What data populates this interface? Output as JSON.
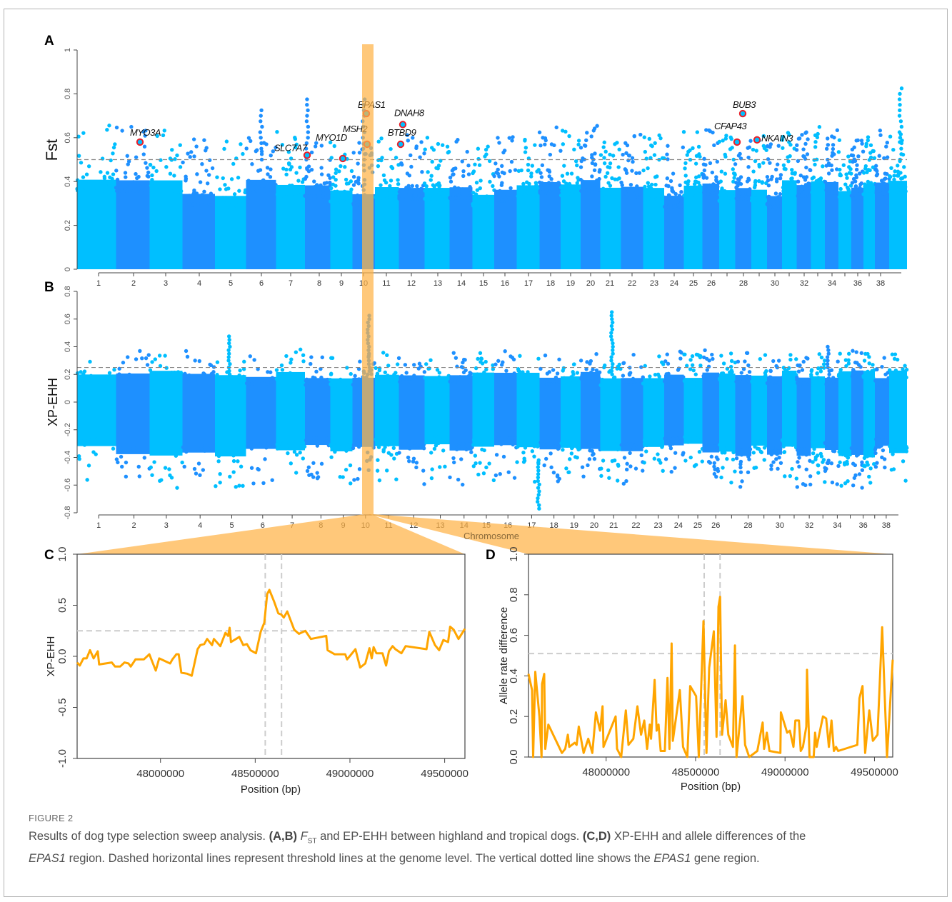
{
  "figure_label": "FIGURE 2",
  "caption": {
    "part1": "Results of dog type selection sweep analysis. ",
    "bold1": "(A,B) ",
    "fst_F": "F",
    "fst_sub": "ST",
    "part2": " and EP-EHH between highland and tropical dogs. ",
    "bold2": "(C,D)",
    "part3": " XP-EHH and allele differences of the ",
    "gene_italic": "EPAS1",
    "part4": " region. Dashed horizontal lines represent threshold lines at the genome level. The vertical dotted line shows the ",
    "gene_italic2": "EPAS1",
    "part5": " gene region."
  },
  "colors": {
    "chrom_light": "#00BFFF",
    "chrom_dark": "#1E90FF",
    "highlight": "#FFB347",
    "line": "#FFA500",
    "gene_marker": "#E8202A",
    "threshold": "#999999"
  },
  "chart_data": [
    {
      "panel": "A",
      "type": "scatter",
      "subtype": "manhattan",
      "ylabel": "Fst",
      "xlabel": "",
      "ylim": [
        0,
        1
      ],
      "yticks": [
        "0",
        "0.2",
        "0.4",
        "0.6",
        "0.8",
        "1"
      ],
      "xtick_labels": [
        "1",
        "2",
        "3",
        "4",
        "5",
        "6",
        "7",
        "8",
        "9",
        "10",
        "11",
        "12",
        "13",
        "14",
        "15",
        "16",
        "17",
        "18",
        "19",
        "20",
        "21",
        "22",
        "23",
        "24",
        "25",
        "26",
        "28",
        "30",
        "32",
        "34",
        "36",
        "38"
      ],
      "threshold": 0.5,
      "highlighted_chromosome": "10",
      "max_value": 0.85,
      "genes": [
        {
          "name": "MYO3A",
          "chromosome": 2,
          "fst": 0.58
        },
        {
          "name": "SLC7A7",
          "chromosome": 8,
          "fst": 0.52
        },
        {
          "name": "MYO1D",
          "chromosome": 9,
          "fst": 0.505
        },
        {
          "name": "MSH2",
          "chromosome": 10,
          "fst": 0.57
        },
        {
          "name": "EPAS1",
          "chromosome": 10,
          "fst": 0.71
        },
        {
          "name": "DNAH8",
          "chromosome": 12,
          "fst": 0.66
        },
        {
          "name": "BTBD9",
          "chromosome": 12,
          "fst": 0.57
        },
        {
          "name": "BUB3",
          "chromosome": 28,
          "fst": 0.71
        },
        {
          "name": "CFAP43",
          "chromosome": 28,
          "fst": 0.58
        },
        {
          "name": "NKAIN3",
          "chromosome": 29,
          "fst": 0.59
        }
      ]
    },
    {
      "panel": "B",
      "type": "scatter",
      "subtype": "manhattan",
      "ylabel": "XP-EHH",
      "xlabel": "Chromosome",
      "ylim": [
        -0.8,
        0.8
      ],
      "yticks": [
        "-0.8",
        "-0.6",
        "-0.4",
        "-0.2",
        "0",
        "0.2",
        "0.4",
        "0.6",
        "0.8"
      ],
      "xtick_labels": [
        "1",
        "2",
        "3",
        "4",
        "5",
        "6",
        "7",
        "8",
        "9",
        "10",
        "11",
        "12",
        "13",
        "14",
        "15",
        "16",
        "17",
        "18",
        "19",
        "20",
        "21",
        "22",
        "23",
        "24",
        "25",
        "26",
        "28",
        "30",
        "32",
        "34",
        "36",
        "38"
      ],
      "threshold": 0.25,
      "highlighted_chromosome": "10",
      "peaks": [
        {
          "chromosome": 10,
          "value": 0.65
        },
        {
          "chromosome": 21,
          "value": 0.67
        },
        {
          "chromosome": 5,
          "value": 0.48
        },
        {
          "chromosome": 17,
          "value": -0.77
        }
      ]
    },
    {
      "panel": "C",
      "type": "line",
      "ylabel": "XP-EHH",
      "xlabel": "Position (bp)",
      "xlim": [
        47560000,
        49607000
      ],
      "ylim": [
        -1.0,
        1.0
      ],
      "xticks": [
        "48000000",
        "48500000",
        "49000000",
        "49500000"
      ],
      "yticks": [
        "-1.0",
        "-0.5",
        "0.0",
        "0.5",
        "1.0"
      ],
      "threshold": 0.25,
      "gene_region": [
        48553000,
        48639000
      ],
      "x": [
        47560000,
        47574000,
        47593000,
        47610000,
        47628000,
        47647000,
        47669000,
        47676000,
        47743000,
        47760000,
        47787000,
        47810000,
        47831000,
        47843000,
        47868000,
        47912000,
        47941000,
        47975000,
        47993000,
        48051000,
        48063000,
        48084000,
        48096000,
        48110000,
        48140000,
        48165000,
        48196000,
        48210000,
        48231000,
        48246000,
        48272000,
        48282000,
        48316000,
        48343000,
        48357000,
        48365000,
        48372000,
        48416000,
        48437000,
        48456000,
        48475000,
        48504000,
        48529000,
        48548000,
        48563000,
        48575000,
        48599000,
        48622000,
        48637000,
        48651000,
        48669000,
        48706000,
        48731000,
        48765000,
        48794000,
        48875000,
        48882000,
        48919000,
        48975000,
        48985000,
        49029000,
        49054000,
        49081000,
        49103000,
        49115000,
        49125000,
        49140000,
        49172000,
        49191000,
        49206000,
        49225000,
        49240000,
        49272000,
        49294000,
        49404000,
        49419000,
        49449000,
        49471000,
        49493000,
        49518000,
        49529000,
        49548000,
        49573000,
        49607000
      ],
      "y": [
        -0.06,
        -0.09,
        -0.02,
        -0.02,
        0.06,
        -0.02,
        0.05,
        -0.08,
        -0.06,
        -0.1,
        -0.1,
        -0.06,
        -0.07,
        -0.1,
        -0.03,
        -0.03,
        0.02,
        -0.14,
        -0.02,
        -0.07,
        -0.03,
        0.02,
        0.02,
        -0.16,
        -0.17,
        -0.19,
        0.07,
        0.11,
        0.12,
        0.17,
        0.11,
        0.17,
        0.1,
        0.23,
        0.2,
        0.28,
        0.14,
        0.19,
        0.11,
        0.12,
        0.06,
        0.03,
        0.24,
        0.33,
        0.61,
        0.65,
        0.54,
        0.42,
        0.41,
        0.38,
        0.44,
        0.26,
        0.22,
        0.25,
        0.17,
        0.2,
        0.06,
        0.02,
        0.02,
        -0.03,
        0.07,
        -0.11,
        -0.07,
        0.08,
        -0.02,
        0.09,
        0.03,
        0.03,
        -0.09,
        0.05,
        0.1,
        0.07,
        0.03,
        0.1,
        0.07,
        0.24,
        0.11,
        0.06,
        0.16,
        0.14,
        0.29,
        0.26,
        0.17,
        0.27
      ]
    },
    {
      "panel": "D",
      "type": "line",
      "ylabel": "Allele rate difference",
      "xlabel": "Position (bp)",
      "xlim": [
        47566000,
        49602000
      ],
      "ylim": [
        0.0,
        1.0
      ],
      "xticks": [
        "48000000",
        "48500000",
        "49000000",
        "49500000"
      ],
      "yticks": [
        "0.0",
        "0.2",
        "0.4",
        "0.6",
        "0.8",
        "1.0"
      ],
      "threshold": 0.51,
      "gene_region": [
        48548000,
        48637000
      ],
      "x": [
        47566000,
        47586000,
        47592000,
        47604000,
        47627000,
        47639000,
        47642000,
        47654000,
        47660000,
        47677000,
        47753000,
        47771000,
        47786000,
        47794000,
        47824000,
        47835000,
        47847000,
        47874000,
        47900000,
        47923000,
        47943000,
        47966000,
        47980000,
        47985000,
        48053000,
        48061000,
        48084000,
        48110000,
        48125000,
        48152000,
        48175000,
        48195000,
        48213000,
        48229000,
        48244000,
        48251000,
        48271000,
        48282000,
        48293000,
        48305000,
        48328000,
        48343000,
        48354000,
        48366000,
        48373000,
        48412000,
        48430000,
        48454000,
        48470000,
        48503000,
        48518000,
        48544000,
        48561000,
        48576000,
        48602000,
        48617000,
        48628000,
        48637000,
        48648000,
        48668000,
        48683000,
        48709000,
        48720000,
        48729000,
        48762000,
        48777000,
        48800000,
        48845000,
        48875000,
        48883000,
        48898000,
        48913000,
        48974000,
        48977000,
        49012000,
        49027000,
        49047000,
        49058000,
        49078000,
        49088000,
        49100000,
        49119000,
        49123000,
        49137000,
        49160000,
        49168000,
        49177000,
        49212000,
        49230000,
        49245000,
        49260000,
        49273000,
        49285000,
        49297000,
        49404000,
        49416000,
        49433000,
        49448000,
        49471000,
        49491000,
        49517000,
        49543000,
        49570000,
        49602000
      ],
      "y": [
        0.41,
        0.33,
        0,
        0.42,
        0.2,
        0,
        0.36,
        0.41,
        0.04,
        0.16,
        0.02,
        0.04,
        0.11,
        0.05,
        0.07,
        0.06,
        0.15,
        0.02,
        0.09,
        0.02,
        0.22,
        0.13,
        0.25,
        0.05,
        0.2,
        0.04,
        0,
        0.23,
        0.06,
        0.09,
        0.25,
        0.11,
        0.18,
        0.04,
        0.16,
        0.09,
        0.38,
        0.13,
        0.16,
        0.03,
        0.03,
        0.39,
        0.04,
        0.56,
        0.08,
        0.33,
        0.05,
        0,
        0.35,
        0.3,
        0,
        0.67,
        0.02,
        0.44,
        0.62,
        0.1,
        0.74,
        0.79,
        0.11,
        0.28,
        0.11,
        0.05,
        0.55,
        0,
        0.3,
        0.06,
        0,
        0.03,
        0.17,
        0.04,
        0.12,
        0.03,
        0.02,
        0.22,
        0.12,
        0.13,
        0.05,
        0.18,
        0.18,
        0.03,
        0.05,
        0.15,
        0.43,
        0,
        0,
        0.12,
        0.05,
        0.2,
        0.19,
        0.05,
        0.18,
        0.03,
        0.05,
        0.03,
        0.06,
        0.29,
        0.35,
        0.02,
        0.23,
        0.08,
        0.11,
        0.64,
        0,
        0.48
      ]
    }
  ],
  "panel_letters": [
    "A",
    "B",
    "C",
    "D"
  ]
}
